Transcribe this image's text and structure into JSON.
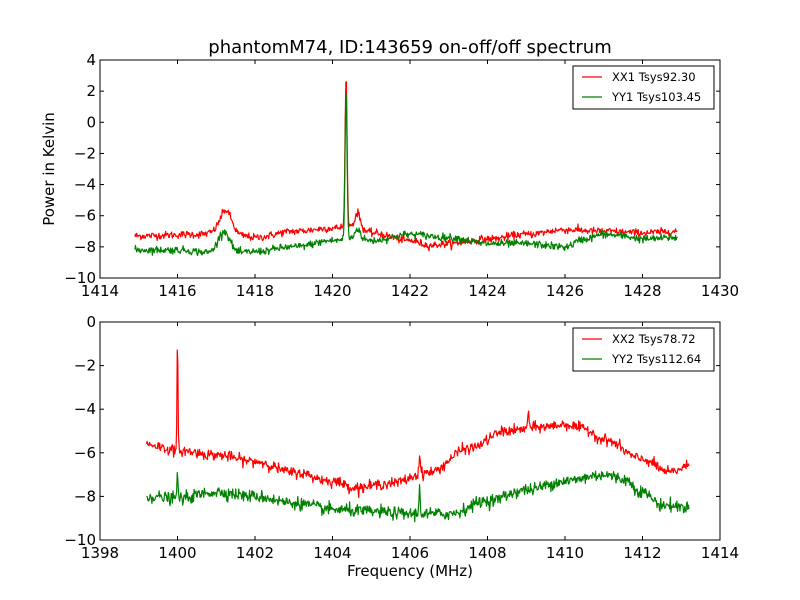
{
  "chart_data": {
    "type": "line",
    "title": "phantomM74, ID:143659 on-off/off spectrum",
    "xlabel": "Frequency (MHz)",
    "ylabel": "Power in Kelvin",
    "panels": [
      {
        "name": "upper",
        "xlim": [
          1414,
          1430
        ],
        "ylim": [
          -10,
          4
        ],
        "xticks": [
          1414,
          1416,
          1418,
          1420,
          1422,
          1424,
          1426,
          1428,
          1430
        ],
        "yticks": [
          -10,
          -8,
          -6,
          -4,
          -2,
          0,
          2,
          4
        ],
        "xtick_labels": [
          "1414",
          "1416",
          "1418",
          "1420",
          "1422",
          "1424",
          "1426",
          "1428",
          "1430"
        ],
        "ytick_labels": [
          "−10",
          "−8",
          "−6",
          "−4",
          "−2",
          "0",
          "2",
          "4"
        ],
        "legend_position": "top-right",
        "grid": false,
        "series": [
          {
            "name": "XX1 Tsys92.30",
            "color": "#ff0000",
            "x_range": [
              1414.9,
              1428.9
            ],
            "noise": 0.12,
            "baseline": [
              [
                1414.9,
                -7.3
              ],
              [
                1416.5,
                -7.2
              ],
              [
                1417.0,
                -7.1
              ],
              [
                1417.7,
                -7.3
              ],
              [
                1418.0,
                -7.4
              ],
              [
                1419.0,
                -7.0
              ],
              [
                1420.0,
                -6.8
              ],
              [
                1420.6,
                -6.6
              ],
              [
                1421.0,
                -7.1
              ],
              [
                1422.0,
                -7.6
              ],
              [
                1422.5,
                -7.9
              ],
              [
                1423.0,
                -7.8
              ],
              [
                1424.0,
                -7.5
              ],
              [
                1425.0,
                -7.2
              ],
              [
                1426.0,
                -6.9
              ],
              [
                1427.0,
                -7.0
              ],
              [
                1428.0,
                -7.1
              ],
              [
                1428.9,
                -7.0
              ]
            ],
            "features": [
              {
                "x": 1417.25,
                "height": 1.5,
                "width": 0.15
              },
              {
                "x": 1420.35,
                "height": 9.9,
                "width": 0.025
              },
              {
                "x": 1420.65,
                "height": 0.8,
                "width": 0.06
              }
            ]
          },
          {
            "name": "YY1 Tsys103.45",
            "color": "#008000",
            "x_range": [
              1414.9,
              1428.9
            ],
            "noise": 0.12,
            "baseline": [
              [
                1414.9,
                -8.2
              ],
              [
                1416.0,
                -8.2
              ],
              [
                1417.0,
                -8.4
              ],
              [
                1417.5,
                -8.4
              ],
              [
                1418.0,
                -8.3
              ],
              [
                1419.0,
                -8.0
              ],
              [
                1420.0,
                -7.6
              ],
              [
                1420.6,
                -7.4
              ],
              [
                1421.0,
                -7.6
              ],
              [
                1422.0,
                -7.2
              ],
              [
                1423.0,
                -7.4
              ],
              [
                1424.0,
                -7.8
              ],
              [
                1425.0,
                -7.8
              ],
              [
                1426.0,
                -8.0
              ],
              [
                1426.5,
                -7.5
              ],
              [
                1427.0,
                -7.2
              ],
              [
                1427.5,
                -7.3
              ],
              [
                1428.0,
                -7.5
              ],
              [
                1428.9,
                -7.4
              ]
            ],
            "features": [
              {
                "x": 1417.2,
                "height": 1.4,
                "width": 0.15
              },
              {
                "x": 1420.35,
                "height": 9.5,
                "width": 0.025
              },
              {
                "x": 1420.65,
                "height": 0.6,
                "width": 0.06
              }
            ]
          }
        ]
      },
      {
        "name": "lower",
        "xlim": [
          1398,
          1414
        ],
        "ylim": [
          -10,
          0
        ],
        "xticks": [
          1398,
          1400,
          1402,
          1404,
          1406,
          1408,
          1410,
          1412,
          1414
        ],
        "yticks": [
          -10,
          -8,
          -6,
          -4,
          -2,
          0
        ],
        "xtick_labels": [
          "1398",
          "1400",
          "1402",
          "1404",
          "1406",
          "1408",
          "1410",
          "1412",
          "1414"
        ],
        "ytick_labels": [
          "−10",
          "−8",
          "−6",
          "−4",
          "−2",
          "0"
        ],
        "legend_position": "top-right",
        "grid": false,
        "series": [
          {
            "name": "XX2 Tsys78.72",
            "color": "#ff0000",
            "x_range": [
              1399.2,
              1413.2
            ],
            "noise": 0.12,
            "baseline": [
              [
                1399.2,
                -5.6
              ],
              [
                1400.0,
                -5.9
              ],
              [
                1401.0,
                -6.1
              ],
              [
                1402.0,
                -6.4
              ],
              [
                1403.0,
                -6.9
              ],
              [
                1404.0,
                -7.3
              ],
              [
                1404.6,
                -7.6
              ],
              [
                1405.5,
                -7.4
              ],
              [
                1406.5,
                -6.9
              ],
              [
                1407.5,
                -5.8
              ],
              [
                1408.5,
                -5.0
              ],
              [
                1409.5,
                -4.8
              ],
              [
                1410.0,
                -4.7
              ],
              [
                1410.5,
                -4.9
              ],
              [
                1411.0,
                -5.4
              ],
              [
                1412.0,
                -6.3
              ],
              [
                1412.7,
                -6.9
              ],
              [
                1413.2,
                -6.6
              ]
            ],
            "features": [
              {
                "x": 1400.0,
                "height": 5.2,
                "width": 0.012
              },
              {
                "x": 1406.25,
                "height": 0.8,
                "width": 0.02
              },
              {
                "x": 1409.05,
                "height": 0.7,
                "width": 0.02
              }
            ]
          },
          {
            "name": "YY2 Tsys112.64",
            "color": "#008000",
            "x_range": [
              1399.2,
              1413.2
            ],
            "noise": 0.14,
            "baseline": [
              [
                1399.2,
                -8.0
              ],
              [
                1400.0,
                -8.1
              ],
              [
                1401.0,
                -7.8
              ],
              [
                1402.0,
                -8.0
              ],
              [
                1403.0,
                -8.3
              ],
              [
                1404.0,
                -8.6
              ],
              [
                1405.0,
                -8.7
              ],
              [
                1406.0,
                -8.8
              ],
              [
                1407.0,
                -8.8
              ],
              [
                1408.0,
                -8.2
              ],
              [
                1409.0,
                -7.7
              ],
              [
                1410.0,
                -7.3
              ],
              [
                1411.0,
                -7.0
              ],
              [
                1411.5,
                -7.2
              ],
              [
                1412.0,
                -7.8
              ],
              [
                1412.5,
                -8.4
              ],
              [
                1413.2,
                -8.5
              ]
            ],
            "features": [
              {
                "x": 1400.0,
                "height": 1.1,
                "width": 0.015
              },
              {
                "x": 1406.25,
                "height": 1.3,
                "width": 0.015
              }
            ]
          }
        ]
      }
    ]
  }
}
